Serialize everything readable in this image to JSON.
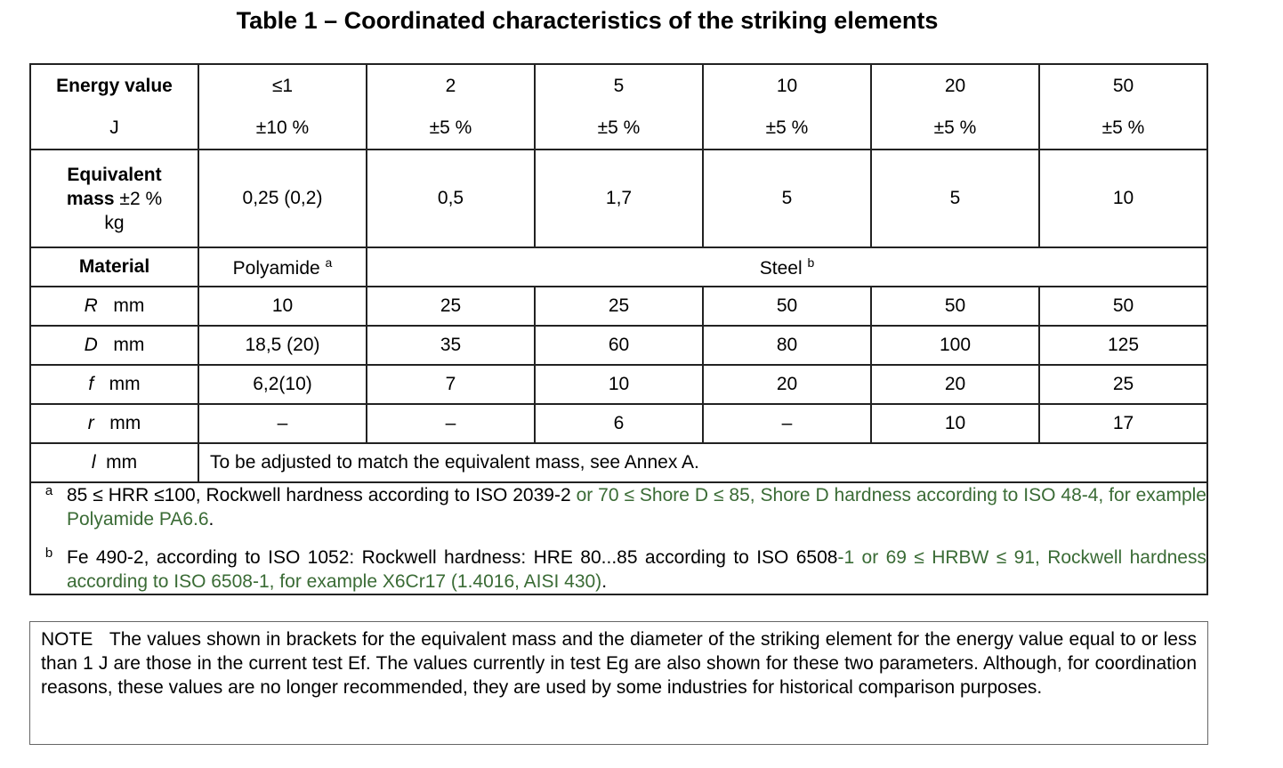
{
  "title": "Table 1 – Coordinated characteristics of the striking elements",
  "header": {
    "label_line1": "Energy value",
    "label_line2": "J",
    "energies": [
      {
        "value": "≤1",
        "tol": "±10 %"
      },
      {
        "value": "2",
        "tol": "±5 %"
      },
      {
        "value": "5",
        "tol": "±5 %"
      },
      {
        "value": "10",
        "tol": "±5 %"
      },
      {
        "value": "20",
        "tol": "±5 %"
      },
      {
        "value": "50",
        "tol": "±5 %"
      }
    ]
  },
  "mass": {
    "label_bold1": "Equivalent",
    "label_bold2": "mass",
    "label_tol": " ±2 %",
    "label_unit": "kg",
    "values": [
      "0,25 (0,2)",
      "0,5",
      "1,7",
      "5",
      "5",
      "10"
    ]
  },
  "material": {
    "label": "Material",
    "polyamide": "Polyamide ",
    "polyamide_note": "a",
    "steel": "Steel ",
    "steel_note": "b"
  },
  "rows": [
    {
      "symbol": "R",
      "unit": "mm",
      "values": [
        "10",
        "25",
        "25",
        "50",
        "50",
        "50"
      ]
    },
    {
      "symbol": "D",
      "unit": "mm",
      "values": [
        "18,5 (20)",
        "35",
        "60",
        "80",
        "100",
        "125"
      ]
    },
    {
      "symbol": "f",
      "unit": "mm",
      "values": [
        "6,2(10)",
        "7",
        "10",
        "20",
        "20",
        "25"
      ]
    },
    {
      "symbol": "r",
      "unit": "mm",
      "values": [
        "–",
        "–",
        "6",
        "–",
        "10",
        "17"
      ]
    }
  ],
  "l_row": {
    "symbol": "l",
    "unit": "mm",
    "text": "To be adjusted to match the equivalent mass, see Annex A."
  },
  "footnotes": [
    {
      "mark": "a",
      "black": "85 ≤ HRR ≤100, Rockwell hardness according to ISO 2039-2 ",
      "green": "or 70 ≤ Shore D ≤ 85, Shore D hardness according to ISO 48-4, for example Polyamide PA6.6",
      "tail": "."
    },
    {
      "mark": "b",
      "black": "Fe 490-2, according to ISO 1052: Rockwell hardness: HRE 80...85 according to ISO 6508",
      "green": "-1 or 69 ≤ HRBW ≤ 91, Rockwell hardness according to ISO 6508-1, for example X6Cr17 (1.4016, AISI 430)",
      "tail": "."
    }
  ],
  "note": {
    "label": "NOTE",
    "text": "The values shown in brackets for the equivalent mass and the diameter of the striking element for the energy value equal to or less than 1 J are those in the current test Ef. The values currently in test Eg are also shown for these two parameters. Although, for coordination reasons, these values are no longer recommended, they are used by some industries for historical comparison purposes."
  },
  "colors": {
    "green_text": "#3a6b35",
    "border": "#222222"
  }
}
